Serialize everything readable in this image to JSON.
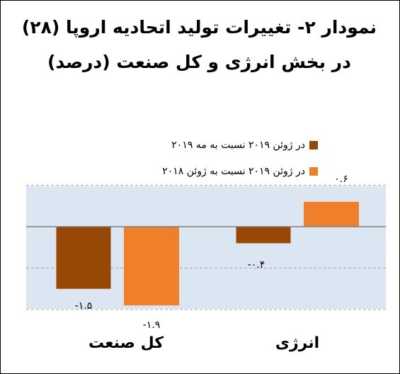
{
  "chart_data": {
    "type": "bar",
    "title": "نمودار ۲- تغییرات تولید اتحادیه اروپا (۲۸) در بخش انرژی و کل صنعت (درصد)",
    "categories": [
      "کل صنعت",
      "انرژی"
    ],
    "series": [
      {
        "name": "در ژوئن ۲۰۱۹ نسبت به مه ۲۰۱۹",
        "color": "#974807",
        "values": [
          -1.5,
          -0.4
        ],
        "value_labels": [
          "-۱.۵",
          "-۰.۴"
        ]
      },
      {
        "name": "در ژوئن ۲۰۱۹ نسبت به ژوئن ۲۰۱۸",
        "color": "#f07f2b",
        "values": [
          -1.9,
          0.6
        ],
        "value_labels": [
          "-۱.۹",
          "۰.۶"
        ]
      }
    ],
    "ylim": [
      -2.0,
      1.0
    ],
    "grid": true,
    "legend_position": "top",
    "plot_background": "#dce6f2",
    "xlabel": "",
    "ylabel": ""
  }
}
